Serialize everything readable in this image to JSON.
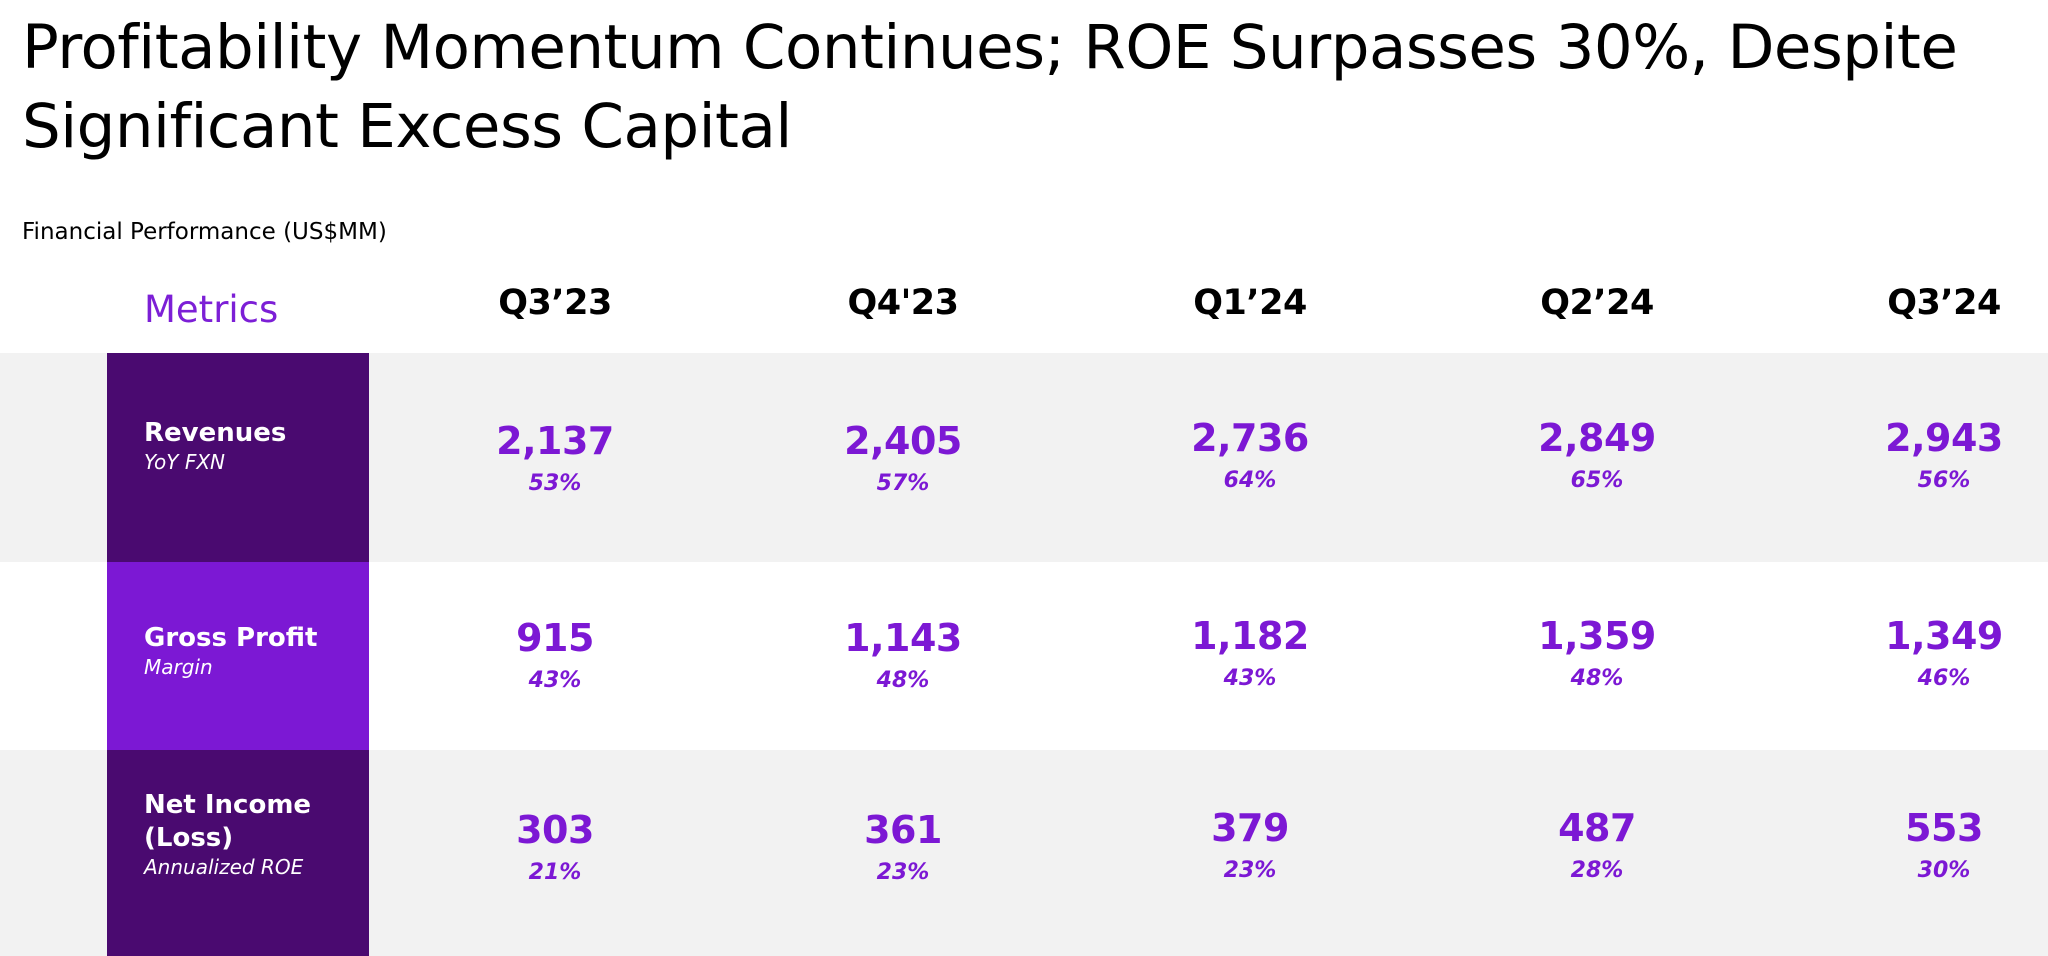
{
  "title": "Profitability Momentum Continues; ROE Surpasses 30%, Despite Significant Excess Capital",
  "subtitle": "Financial Performance (US$MM)",
  "metrics_label": "Metrics",
  "columns": [
    "Q3’23",
    "Q4'23",
    "Q1’24",
    "Q2’24",
    "Q3’24"
  ],
  "rows": [
    {
      "name": "Revenues",
      "sub": "YoY FXN",
      "values": [
        "2,137",
        "2,405",
        "2,736",
        "2,849",
        "2,943"
      ],
      "pcts": [
        "53%",
        "57%",
        "64%",
        "65%",
        "56%"
      ]
    },
    {
      "name": "Gross Profit",
      "sub": "Margin",
      "values": [
        "915",
        "1,143",
        "1,182",
        "1,359",
        "1,349"
      ],
      "pcts": [
        "43%",
        "48%",
        "43%",
        "48%",
        "46%"
      ]
    },
    {
      "name": "Net Income (Loss)",
      "sub": "Annualized ROE",
      "values": [
        "303",
        "361",
        "379",
        "487",
        "553"
      ],
      "pcts": [
        "21%",
        "23%",
        "23%",
        "28%",
        "30%"
      ]
    }
  ],
  "colors": {
    "accent": "#7c18d4",
    "dark_purple": "#4a0a70",
    "band_grey": "#f2f2f2"
  }
}
